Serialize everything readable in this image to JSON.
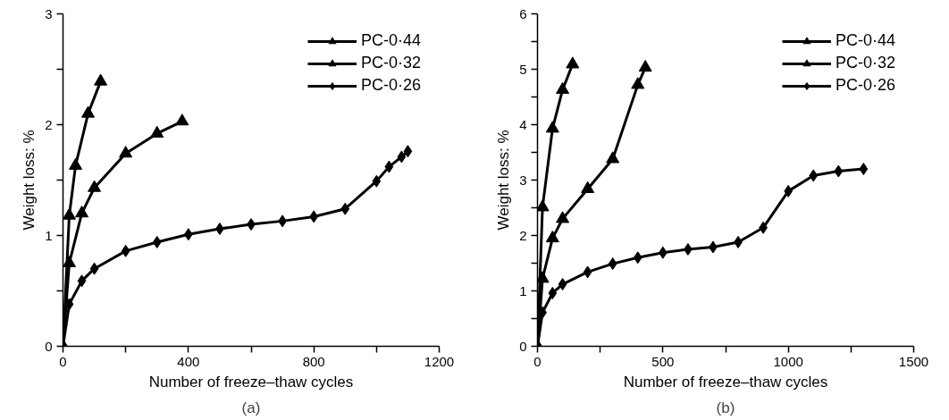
{
  "chart_data": [
    {
      "type": "line",
      "xlabel": "Number of freeze–thaw cycles",
      "ylabel": "Weight loss: %",
      "annotations": [
        "(a)"
      ],
      "xlim": [
        0,
        1200
      ],
      "xticks": [
        0,
        {
          "value": 200,
          "label": null
        },
        400,
        {
          "value": 600,
          "label": null
        },
        800,
        {
          "value": 1000,
          "label": null
        },
        1200
      ],
      "ylim": [
        0,
        3
      ],
      "yticks": [
        0,
        {
          "value": 0.5,
          "label": null
        },
        1,
        {
          "value": 1.5,
          "label": null
        },
        2,
        {
          "value": 2.5,
          "label": null
        },
        3
      ],
      "grid": false,
      "legend": "top right",
      "line_style": "solid",
      "series": [
        {
          "name": "PC-0·44",
          "color": "#000000",
          "marker": "triangle",
          "x": [
            0,
            20,
            40,
            80,
            120
          ],
          "values": [
            0,
            1.18,
            1.63,
            2.1,
            2.39
          ]
        },
        {
          "name": "PC-0·32",
          "color": "#000000",
          "marker": "triangle",
          "x": [
            0,
            20,
            60,
            100,
            200,
            300,
            380
          ],
          "values": [
            0,
            0.75,
            1.2,
            1.43,
            1.74,
            1.92,
            2.03
          ]
        },
        {
          "name": "PC-0·26",
          "color": "#000000",
          "marker": "diamond",
          "x": [
            0,
            20,
            60,
            100,
            200,
            300,
            400,
            500,
            600,
            700,
            800,
            900,
            1000,
            1040,
            1080,
            1100
          ],
          "values": [
            0,
            0.38,
            0.59,
            0.7,
            0.86,
            0.94,
            1.01,
            1.06,
            1.1,
            1.13,
            1.17,
            1.24,
            1.49,
            1.62,
            1.71,
            1.76
          ]
        }
      ]
    },
    {
      "type": "line",
      "xlabel": "Number of freeze–thaw cycles",
      "ylabel": "Weight loss: %",
      "annotations": [
        "(b)"
      ],
      "xlim": [
        0,
        1500
      ],
      "xticks": [
        0,
        {
          "value": 250,
          "label": null
        },
        500,
        {
          "value": 750,
          "label": null
        },
        1000,
        {
          "value": 1250,
          "label": null
        },
        1500
      ],
      "ylim": [
        0,
        6
      ],
      "yticks": [
        0,
        {
          "value": 0.5,
          "label": null
        },
        1,
        {
          "value": 1.5,
          "label": null
        },
        2,
        {
          "value": 2.5,
          "label": null
        },
        3,
        {
          "value": 3.5,
          "label": null
        },
        4,
        {
          "value": 4.5,
          "label": null
        },
        5,
        {
          "value": 5.5,
          "label": null
        },
        6
      ],
      "grid": false,
      "legend": "top right",
      "line_style": "solid",
      "series": [
        {
          "name": "PC-0·44",
          "color": "#000000",
          "marker": "triangle",
          "x": [
            0,
            20,
            60,
            100,
            140
          ],
          "values": [
            0,
            2.51,
            3.93,
            4.63,
            5.09
          ]
        },
        {
          "name": "PC-0·32",
          "color": "#000000",
          "marker": "triangle",
          "x": [
            0,
            20,
            60,
            100,
            200,
            300,
            400,
            430
          ],
          "values": [
            0,
            1.22,
            1.95,
            2.3,
            2.84,
            3.38,
            4.72,
            5.03
          ]
        },
        {
          "name": "PC-0·26",
          "color": "#000000",
          "marker": "diamond",
          "x": [
            0,
            20,
            60,
            100,
            200,
            300,
            400,
            500,
            600,
            700,
            800,
            900,
            1000,
            1100,
            1200,
            1300
          ],
          "values": [
            0,
            0.61,
            0.96,
            1.12,
            1.34,
            1.49,
            1.6,
            1.69,
            1.75,
            1.79,
            1.88,
            2.14,
            2.8,
            3.08,
            3.16,
            3.2
          ]
        }
      ]
    }
  ]
}
